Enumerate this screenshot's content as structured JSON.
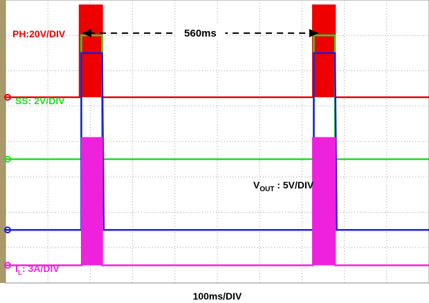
{
  "chart_data": {
    "type": "line",
    "title": "",
    "xlabel": "100ms/DIV",
    "x_unit": "ms",
    "xlim": [
      0,
      1000
    ],
    "grid": true,
    "grid_style": "dotted",
    "divisions": {
      "x": 10,
      "y": 8
    },
    "annotations": [
      {
        "text": "560ms",
        "from_x": 180,
        "to_x": 740,
        "style": "dashed double arrow"
      }
    ],
    "series": [
      {
        "label_prefix": "PH",
        "label_sub": "",
        "label_suffix": ":20V/DIV",
        "color": "#ee0000",
        "ground_division": 5.25,
        "points": [
          [
            0,
            0
          ],
          [
            175,
            0
          ],
          [
            175,
            2.6
          ],
          [
            228,
            2.6
          ],
          [
            228,
            0
          ],
          [
            726,
            0
          ],
          [
            726,
            2.6
          ],
          [
            778,
            2.6
          ],
          [
            778,
            0
          ],
          [
            1000,
            0
          ]
        ]
      },
      {
        "label_prefix": "SS",
        "label_sub": "",
        "label_suffix": ": 2V/DIV",
        "color": "#22dd22",
        "ground_division": 3.5,
        "points": [
          [
            0,
            0
          ],
          [
            179,
            0
          ],
          [
            179,
            3.5
          ],
          [
            228,
            3.5
          ],
          [
            228,
            0
          ],
          [
            728,
            0
          ],
          [
            728,
            3.5
          ],
          [
            778,
            3.5
          ],
          [
            778,
            0
          ],
          [
            1000,
            0
          ]
        ]
      },
      {
        "label_prefix": "V",
        "label_sub": "OUT",
        "label_suffix": " : 5V/DIV",
        "color": "#1a1adf",
        "ground_division": 1.5,
        "points": [
          [
            0,
            0
          ],
          [
            179,
            0
          ],
          [
            179,
            5
          ],
          [
            228,
            5
          ],
          [
            232,
            0
          ],
          [
            728,
            0
          ],
          [
            728,
            5
          ],
          [
            778,
            5
          ],
          [
            782,
            0
          ],
          [
            1000,
            0
          ]
        ]
      },
      {
        "label_prefix": "I",
        "label_sub": "L",
        "label_suffix": ": 3A/DIV",
        "color": "#ee22dd",
        "ground_division": 0.5,
        "points": [
          [
            0,
            0
          ],
          [
            180,
            0
          ],
          [
            180,
            3.6
          ],
          [
            228,
            3.6
          ],
          [
            228,
            0
          ],
          [
            726,
            0
          ],
          [
            726,
            3.6
          ],
          [
            778,
            3.6
          ],
          [
            778,
            0
          ],
          [
            1000,
            0
          ]
        ]
      }
    ]
  }
}
